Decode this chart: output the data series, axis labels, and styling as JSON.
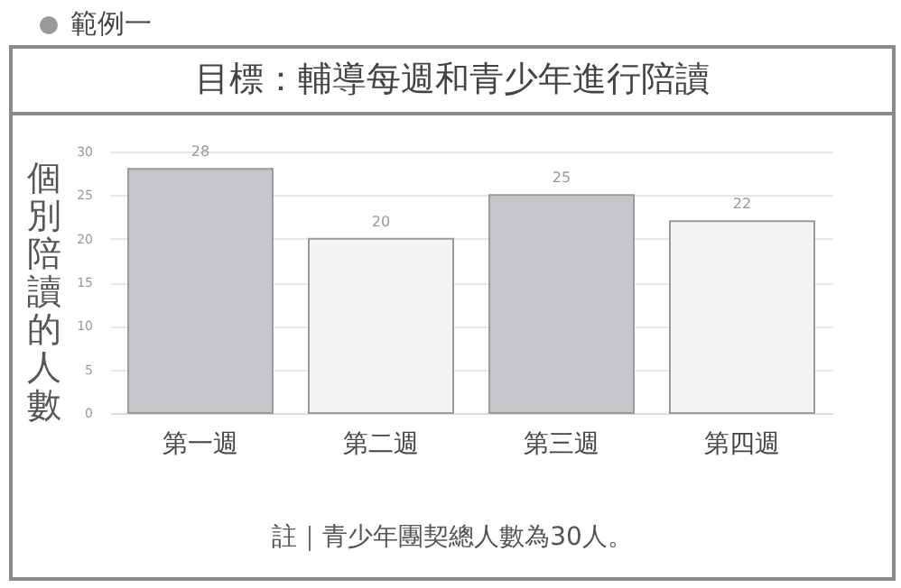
{
  "chart_data": {
    "type": "bar",
    "title": "目標：輔導每週和青少年進行陪讀",
    "ylabel": "個別陪讀的人數",
    "annotations": [
      "範例一",
      "註｜青少年團契總人數為30人。"
    ],
    "categories": [
      "第一週",
      "第二週",
      "第三週",
      "第四週"
    ],
    "values": [
      28,
      20,
      25,
      22
    ],
    "colors": [
      "#c6c6ca",
      "#f4f4f4",
      "#c6c6ca",
      "#f4f4f4"
    ],
    "ylim": [
      0,
      30
    ],
    "yticks": [
      0,
      5,
      10,
      15,
      20,
      25,
      30
    ],
    "grid": "y",
    "data_labels": true
  }
}
